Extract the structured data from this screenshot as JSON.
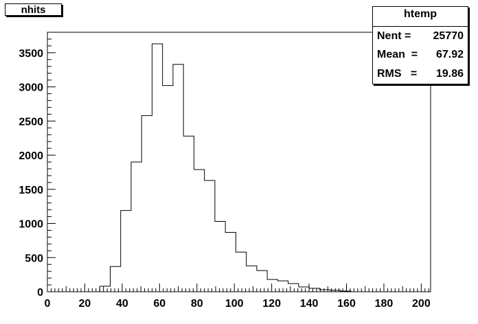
{
  "title": "nhits",
  "stats": {
    "name": "htemp",
    "rows": [
      {
        "key": "Nent = ",
        "value": "25770"
      },
      {
        "key": "Mean  =",
        "value": "67.92"
      },
      {
        "key": "RMS   =",
        "value": "19.86"
      }
    ]
  },
  "chart_data": {
    "type": "histogram",
    "title": "nhits",
    "xlabel": "",
    "ylabel": "",
    "xlim": [
      0,
      205
    ],
    "ylim": [
      0,
      3800
    ],
    "x_ticks": [
      0,
      20,
      40,
      60,
      80,
      100,
      120,
      140,
      160,
      180,
      200
    ],
    "y_ticks": [
      0,
      500,
      1000,
      1500,
      2000,
      2500,
      3000,
      3500
    ],
    "bin_width": 5.6,
    "bin_edges_start": 0,
    "series": [
      {
        "values": [
          0,
          0,
          0,
          0,
          0,
          80,
          370,
          1190,
          1900,
          2580,
          3630,
          3020,
          3330,
          2280,
          1790,
          1630,
          1030,
          870,
          580,
          380,
          310,
          180,
          160,
          120,
          70,
          50,
          30,
          20,
          10,
          0,
          0,
          0,
          0,
          0,
          0,
          0
        ]
      }
    ],
    "line_color": "#000000",
    "grid": false
  }
}
